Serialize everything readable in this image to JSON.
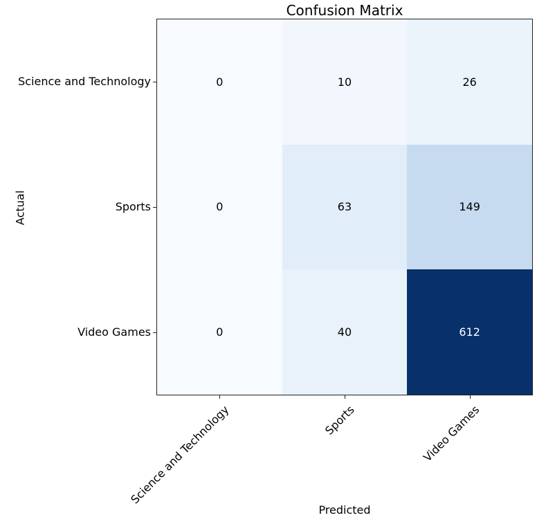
{
  "chart_data": {
    "type": "heatmap",
    "title": "Confusion Matrix",
    "xlabel": "Predicted",
    "ylabel": "Actual",
    "x_categories": [
      "Science and Technology",
      "Sports",
      "Video Games"
    ],
    "y_categories": [
      "Science and Technology",
      "Sports",
      "Video Games"
    ],
    "values": [
      [
        0,
        10,
        26
      ],
      [
        0,
        63,
        149
      ],
      [
        0,
        40,
        612
      ]
    ],
    "colormap": "Blues",
    "cell_colors": [
      [
        "#f7fbff",
        "#f2f7fd",
        "#ebf3fb"
      ],
      [
        "#f7fbff",
        "#e1edf8",
        "#c6dbef"
      ],
      [
        "#f7fbff",
        "#e9f2fa",
        "#08306b"
      ]
    ],
    "text_colors": [
      [
        "#000000",
        "#000000",
        "#000000"
      ],
      [
        "#000000",
        "#000000",
        "#000000"
      ],
      [
        "#000000",
        "#000000",
        "#ffffff"
      ]
    ]
  }
}
